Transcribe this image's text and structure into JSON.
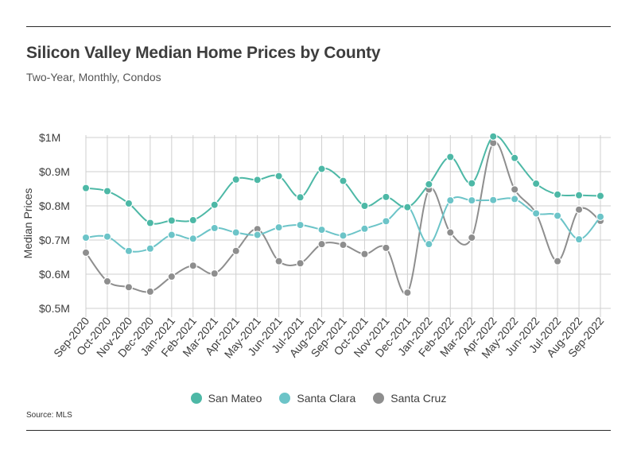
{
  "title": "Silicon Valley Median Home Prices by County",
  "subtitle": "Two-Year, Monthly, Condos",
  "source": "Source:  MLS",
  "chart_data": {
    "type": "line",
    "ylabel": "Median Prices",
    "xlabel": "",
    "ylim": [
      0.5,
      1.0
    ],
    "yticks": [
      {
        "value": 1.0,
        "label": "$1M"
      },
      {
        "value": 0.9,
        "label": "$0.9M"
      },
      {
        "value": 0.8,
        "label": "$0.8M"
      },
      {
        "value": 0.7,
        "label": "$0.7M"
      },
      {
        "value": 0.6,
        "label": "$0.6M"
      },
      {
        "value": 0.5,
        "label": "$0.5M"
      }
    ],
    "grid": true,
    "legend_position": "bottom",
    "categories": [
      "Sep-2020",
      "Oct-2020",
      "Nov-2020",
      "Dec-2020",
      "Jan-2021",
      "Feb-2021",
      "Mar-2021",
      "Apr-2021",
      "May-2021",
      "Jun-2021",
      "Jul-2021",
      "Aug-2021",
      "Sep-2021",
      "Oct-2021",
      "Nov-2021",
      "Dec-2021",
      "Jan-2022",
      "Feb-2022",
      "Mar-2022",
      "Apr-2022",
      "May-2022",
      "Jun-2022",
      "Jul-2022",
      "Aug-2022",
      "Sep-2022"
    ],
    "series": [
      {
        "name": "San Mateo",
        "color": "#4db8a6",
        "values": [
          0.852,
          0.843,
          0.807,
          0.75,
          0.757,
          0.758,
          0.803,
          0.877,
          0.876,
          0.887,
          0.825,
          0.908,
          0.873,
          0.8,
          0.826,
          0.796,
          0.863,
          0.943,
          0.866,
          1.003,
          0.94,
          0.865,
          0.833,
          0.831,
          0.829
        ]
      },
      {
        "name": "Santa Clara",
        "color": "#6cc4c8",
        "values": [
          0.707,
          0.71,
          0.668,
          0.675,
          0.715,
          0.704,
          0.735,
          0.722,
          0.715,
          0.737,
          0.744,
          0.73,
          0.713,
          0.733,
          0.755,
          0.799,
          0.688,
          0.816,
          0.816,
          0.817,
          0.82,
          0.778,
          0.771,
          0.702,
          0.768
        ]
      },
      {
        "name": "Santa Cruz",
        "color": "#8e8e8e",
        "values": [
          0.663,
          0.579,
          0.562,
          0.549,
          0.593,
          0.625,
          0.602,
          0.668,
          0.732,
          0.638,
          0.632,
          0.688,
          0.686,
          0.659,
          0.677,
          0.546,
          0.848,
          0.722,
          0.707,
          0.984,
          0.848,
          0.778,
          0.638,
          0.789,
          0.756
        ]
      }
    ]
  }
}
